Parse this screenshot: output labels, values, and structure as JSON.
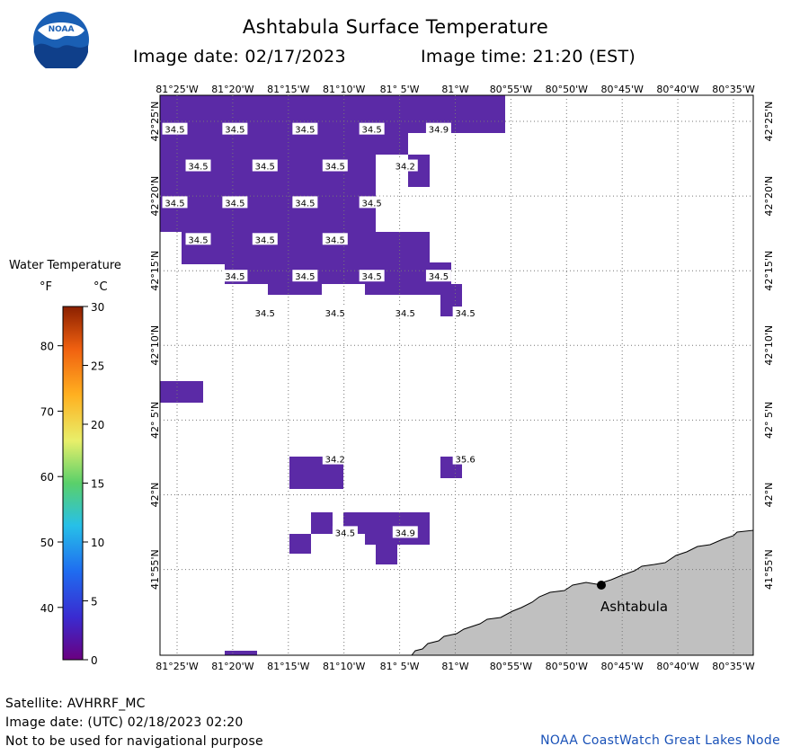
{
  "header": {
    "title": "Ashtabula Surface Temperature",
    "image_date": "Image date: 02/17/2023",
    "image_time": "Image time: 21:20 (EST)"
  },
  "logo": {
    "text": "NOAA"
  },
  "map": {
    "lon_labels": [
      "81°25'W",
      "81°20'W",
      "81°15'W",
      "81°10'W",
      "81° 5'W",
      "81°W",
      "80°55'W",
      "80°50'W",
      "80°45'W",
      "80°40'W",
      "80°35'W"
    ],
    "lat_labels": [
      "42°25'N",
      "42°20'N",
      "42°15'N",
      "42°10'N",
      "42° 5'N",
      "42°N",
      "41°55'N"
    ],
    "city": "Ashtabula",
    "land_color": "#c0c0c0",
    "water_color": "#5b2aa6",
    "temp_labels": [
      {
        "text": "34.5",
        "lon": -81.42,
        "lat": 42.408
      },
      {
        "text": "34.5",
        "lon": -81.33,
        "lat": 42.408
      },
      {
        "text": "34.5",
        "lon": -81.225,
        "lat": 42.408
      },
      {
        "text": "34.5",
        "lon": -81.125,
        "lat": 42.408
      },
      {
        "text": "34.9",
        "lon": -81.025,
        "lat": 42.408
      },
      {
        "text": "34.5",
        "lon": -81.385,
        "lat": 42.367
      },
      {
        "text": "34.5",
        "lon": -81.285,
        "lat": 42.367
      },
      {
        "text": "34.5",
        "lon": -81.18,
        "lat": 42.367
      },
      {
        "text": "34.2",
        "lon": -81.075,
        "lat": 42.367
      },
      {
        "text": "34.5",
        "lon": -81.42,
        "lat": 42.326
      },
      {
        "text": "34.5",
        "lon": -81.33,
        "lat": 42.326
      },
      {
        "text": "34.5",
        "lon": -81.225,
        "lat": 42.326
      },
      {
        "text": "34.5",
        "lon": -81.125,
        "lat": 42.326
      },
      {
        "text": "34.5",
        "lon": -81.385,
        "lat": 42.285
      },
      {
        "text": "34.5",
        "lon": -81.285,
        "lat": 42.285
      },
      {
        "text": "34.5",
        "lon": -81.18,
        "lat": 42.285
      },
      {
        "text": "34.5",
        "lon": -81.33,
        "lat": 42.244
      },
      {
        "text": "34.5",
        "lon": -81.225,
        "lat": 42.244
      },
      {
        "text": "34.5",
        "lon": -81.125,
        "lat": 42.244
      },
      {
        "text": "34.5",
        "lon": -81.025,
        "lat": 42.244
      },
      {
        "text": "34.5",
        "lon": -81.285,
        "lat": 42.203
      },
      {
        "text": "34.5",
        "lon": -81.18,
        "lat": 42.203
      },
      {
        "text": "34.5",
        "lon": -81.075,
        "lat": 42.203
      },
      {
        "text": "34.5",
        "lon": -80.985,
        "lat": 42.203
      },
      {
        "text": "34.2",
        "lon": -81.18,
        "lat": 42.04
      },
      {
        "text": "35.6",
        "lon": -80.985,
        "lat": 42.04
      },
      {
        "text": "34.5",
        "lon": -81.165,
        "lat": 41.958
      },
      {
        "text": "34.9",
        "lon": -81.075,
        "lat": 41.958
      }
    ]
  },
  "colorbar": {
    "title": "Water Temperature",
    "unit_f": "°F",
    "unit_c": "°C",
    "f_ticks": [
      "80",
      "70",
      "60",
      "50",
      "40"
    ],
    "c_ticks": [
      "30",
      "25",
      "20",
      "15",
      "10",
      "5",
      "0"
    ]
  },
  "footer": {
    "satellite": "Satellite: AVHRRF_MC",
    "utc_date": "Image date: (UTC) 02/18/2023  02:20",
    "disclaimer": "Not to be used for navigational purpose",
    "credit": "NOAA CoastWatch Great Lakes Node"
  }
}
